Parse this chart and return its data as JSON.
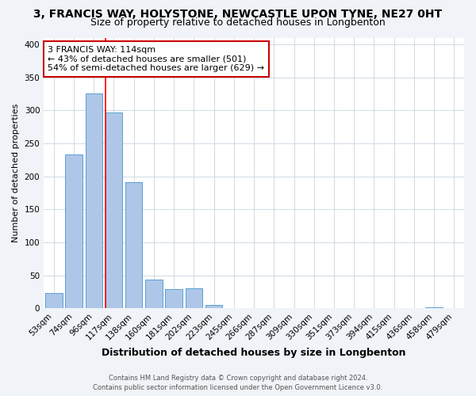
{
  "title": "3, FRANCIS WAY, HOLYSTONE, NEWCASTLE UPON TYNE, NE27 0HT",
  "subtitle": "Size of property relative to detached houses in Longbenton",
  "xlabel": "Distribution of detached houses by size in Longbenton",
  "ylabel": "Number of detached properties",
  "bar_labels": [
    "53sqm",
    "74sqm",
    "96sqm",
    "117sqm",
    "138sqm",
    "160sqm",
    "181sqm",
    "202sqm",
    "223sqm",
    "245sqm",
    "266sqm",
    "287sqm",
    "309sqm",
    "330sqm",
    "351sqm",
    "373sqm",
    "394sqm",
    "415sqm",
    "436sqm",
    "458sqm",
    "479sqm"
  ],
  "bar_values": [
    23,
    233,
    325,
    297,
    191,
    44,
    29,
    30,
    5,
    1,
    0,
    0,
    1,
    0,
    0,
    0,
    1,
    0,
    0,
    2,
    0
  ],
  "bar_color": "#aec6e8",
  "bar_edge_color": "#5a9fd4",
  "vline_color": "red",
  "annotation_line1": "3 FRANCIS WAY: 114sqm",
  "annotation_line2": "← 43% of detached houses are smaller (501)",
  "annotation_line3": "54% of semi-detached houses are larger (629) →",
  "annotation_box_color": "white",
  "annotation_box_edge": "#cc0000",
  "ylim": [
    0,
    410
  ],
  "yticks": [
    0,
    50,
    100,
    150,
    200,
    250,
    300,
    350,
    400
  ],
  "footer_line1": "Contains HM Land Registry data © Crown copyright and database right 2024.",
  "footer_line2": "Contains public sector information licensed under the Open Government Licence v3.0.",
  "bg_color": "#f0f4f8",
  "plot_bg_color": "white",
  "grid_color": "#c8d4e0",
  "title_fontsize": 10,
  "subtitle_fontsize": 9,
  "xlabel_fontsize": 9,
  "ylabel_fontsize": 8,
  "tick_fontsize": 7.5,
  "annot_fontsize": 8,
  "footer_fontsize": 6
}
